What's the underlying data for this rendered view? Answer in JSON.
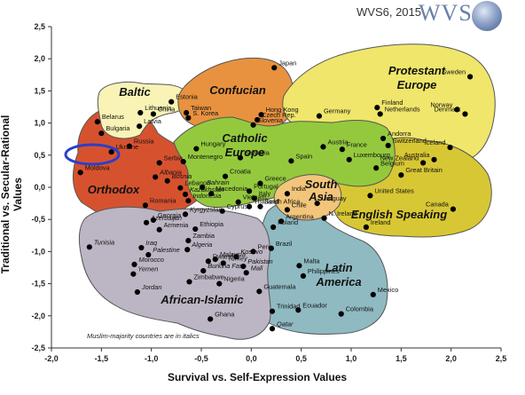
{
  "header": {
    "source": "WVS6, 2015",
    "logo_text": "WVS"
  },
  "note": "Muslim-majority countries are in italics",
  "chart_data": {
    "type": "scatter",
    "xlabel": "Survival vs. Self-Expression Values",
    "ylabel": "Traditional vs. Secular-Rational Values",
    "xlim": [
      -2.0,
      2.5
    ],
    "ylim": [
      -2.5,
      2.5
    ],
    "xticks": [
      "-2,0",
      "-1,5",
      "-1,0",
      "-0,5",
      "0,0",
      "0,5",
      "1,0",
      "1,5",
      "2,0",
      "2,5"
    ],
    "yticks": [
      "2,5",
      "2,0",
      "1,5",
      "1,0",
      "0,5",
      "0,0",
      "-0,5",
      "-1,0",
      "-1,5",
      "-2,0",
      "-2,5"
    ],
    "grid": false,
    "highlight": "Ukraine",
    "regions": [
      {
        "name": "Baltic",
        "color": "#f9f3b5"
      },
      {
        "name": "Confucian",
        "color": "#e8923f"
      },
      {
        "name": "Protestant Europe",
        "color": "#efe66b"
      },
      {
        "name": "Catholic Europe",
        "color": "#94c93e"
      },
      {
        "name": "Orthodox",
        "color": "#d6522f"
      },
      {
        "name": "South Asia",
        "color": "#f2c57a"
      },
      {
        "name": "English Speaking",
        "color": "#d8c734"
      },
      {
        "name": "Latin America",
        "color": "#8fbac2"
      },
      {
        "name": "African-Islamic",
        "color": "#bcb5c3"
      }
    ],
    "points": [
      {
        "name": "Japan",
        "x": 0.23,
        "y": 1.86,
        "italic": false
      },
      {
        "name": "Sweden",
        "x": 2.19,
        "y": 1.72,
        "italic": false
      },
      {
        "name": "Estonia",
        "x": -0.8,
        "y": 1.33,
        "italic": false
      },
      {
        "name": "Lithuania",
        "x": -1.11,
        "y": 1.16,
        "italic": false
      },
      {
        "name": "China",
        "x": -0.98,
        "y": 1.14,
        "italic": false
      },
      {
        "name": "Taiwan",
        "x": -0.65,
        "y": 1.16,
        "italic": false
      },
      {
        "name": "S. Korea",
        "x": -0.63,
        "y": 1.08,
        "italic": false
      },
      {
        "name": "Hong Kong",
        "x": 0.1,
        "y": 1.13,
        "italic": false
      },
      {
        "name": "Czech Rep.",
        "x": 0.06,
        "y": 1.05,
        "italic": false
      },
      {
        "name": "Slovenia",
        "x": 0.02,
        "y": 0.97,
        "italic": false
      },
      {
        "name": "Germany",
        "x": 0.68,
        "y": 1.11,
        "italic": false
      },
      {
        "name": "Finland",
        "x": 1.26,
        "y": 1.24,
        "italic": false
      },
      {
        "name": "Netherlands",
        "x": 1.29,
        "y": 1.14,
        "italic": false
      },
      {
        "name": "Norway",
        "x": 2.06,
        "y": 1.21,
        "italic": false
      },
      {
        "name": "Denmark",
        "x": 2.14,
        "y": 1.14,
        "italic": false
      },
      {
        "name": "Belarus",
        "x": -1.54,
        "y": 1.02,
        "italic": false
      },
      {
        "name": "Bulgaria",
        "x": -1.5,
        "y": 0.84,
        "italic": false
      },
      {
        "name": "Latvia",
        "x": -1.12,
        "y": 0.95,
        "italic": false
      },
      {
        "name": "Russia",
        "x": -1.22,
        "y": 0.64,
        "italic": false
      },
      {
        "name": "Ukraine",
        "x": -1.4,
        "y": 0.55,
        "italic": false
      },
      {
        "name": "Moldova",
        "x": -1.71,
        "y": 0.23,
        "italic": false
      },
      {
        "name": "Serbia",
        "x": -0.92,
        "y": 0.38,
        "italic": false
      },
      {
        "name": "Montenegro",
        "x": -0.68,
        "y": 0.4,
        "italic": false
      },
      {
        "name": "Albania",
        "x": -0.96,
        "y": 0.16,
        "italic": true
      },
      {
        "name": "Bosnia",
        "x": -0.84,
        "y": 0.1,
        "italic": true
      },
      {
        "name": "Hungary",
        "x": -0.55,
        "y": 0.6,
        "italic": false
      },
      {
        "name": "Slovakia",
        "x": -0.11,
        "y": 0.46,
        "italic": false
      },
      {
        "name": "Austria",
        "x": 0.72,
        "y": 0.63,
        "italic": false
      },
      {
        "name": "France",
        "x": 0.91,
        "y": 0.59,
        "italic": false
      },
      {
        "name": "Andorra",
        "x": 1.32,
        "y": 0.76,
        "italic": false
      },
      {
        "name": "Switzerland",
        "x": 1.37,
        "y": 0.65,
        "italic": false
      },
      {
        "name": "Luxembourg",
        "x": 0.98,
        "y": 0.43,
        "italic": false
      },
      {
        "name": "Spain",
        "x": 0.4,
        "y": 0.41,
        "italic": false
      },
      {
        "name": "Belgium",
        "x": 1.25,
        "y": 0.3,
        "italic": false
      },
      {
        "name": "Iceland",
        "x": 1.99,
        "y": 0.62,
        "italic": false
      },
      {
        "name": "Australia",
        "x": 1.83,
        "y": 0.43,
        "italic": false
      },
      {
        "name": "New Zealand",
        "x": 1.72,
        "y": 0.38,
        "italic": false
      },
      {
        "name": "Great Britain",
        "x": 1.5,
        "y": 0.19,
        "italic": false
      },
      {
        "name": "United States",
        "x": 1.19,
        "y": -0.13,
        "italic": false
      },
      {
        "name": "Canada",
        "x": 2.02,
        "y": -0.34,
        "italic": false
      },
      {
        "name": "N. Ireland",
        "x": 0.73,
        "y": -0.48,
        "italic": false
      },
      {
        "name": "Ireland",
        "x": 1.15,
        "y": -0.62,
        "italic": false
      },
      {
        "name": "Croatia",
        "x": -0.26,
        "y": 0.17,
        "italic": false
      },
      {
        "name": "Greece",
        "x": 0.09,
        "y": 0.06,
        "italic": false
      },
      {
        "name": "Portugal",
        "x": -0.02,
        "y": -0.06,
        "italic": false
      },
      {
        "name": "Italy",
        "x": 0.03,
        "y": -0.17,
        "italic": false
      },
      {
        "name": "India",
        "x": 0.36,
        "y": -0.1,
        "italic": false
      },
      {
        "name": "Uruguay",
        "x": 0.66,
        "y": -0.25,
        "italic": false
      },
      {
        "name": "Chile",
        "x": 0.36,
        "y": -0.35,
        "italic": false
      },
      {
        "name": "Argentina",
        "x": 0.3,
        "y": -0.53,
        "italic": false
      },
      {
        "name": "Poland",
        "x": 0.22,
        "y": -0.62,
        "italic": false
      },
      {
        "name": "Brazil",
        "x": 0.2,
        "y": -0.95,
        "italic": false
      },
      {
        "name": "South Africa",
        "x": 0.09,
        "y": -0.3,
        "italic": false
      },
      {
        "name": "Thailand",
        "x": -0.02,
        "y": -0.3,
        "italic": false
      },
      {
        "name": "Vietnam",
        "x": -0.13,
        "y": -0.23,
        "italic": false
      },
      {
        "name": "Lebanon",
        "x": -0.71,
        "y": -0.01,
        "italic": true
      },
      {
        "name": "Bahrain",
        "x": -0.49,
        "y": 0.0,
        "italic": true
      },
      {
        "name": "Kazakhstan",
        "x": -0.66,
        "y": -0.11,
        "italic": true
      },
      {
        "name": "Indonesia",
        "x": -0.63,
        "y": -0.21,
        "italic": true
      },
      {
        "name": "Macedonia",
        "x": -0.4,
        "y": -0.1,
        "italic": false
      },
      {
        "name": "Azerbaijan",
        "x": -1.05,
        "y": -0.55,
        "italic": true
      },
      {
        "name": "Georgia",
        "x": -0.98,
        "y": -0.51,
        "italic": false
      },
      {
        "name": "Armenia",
        "x": -0.92,
        "y": -0.66,
        "italic": false
      },
      {
        "name": "Romania",
        "x": -1.06,
        "y": -0.28,
        "italic": false
      },
      {
        "name": "Kyrgyzstan",
        "x": -0.66,
        "y": -0.42,
        "italic": true
      },
      {
        "name": "Cyprus",
        "x": -0.29,
        "y": -0.37,
        "italic": false
      },
      {
        "name": "Ethiopia",
        "x": -0.56,
        "y": -0.65,
        "italic": false
      },
      {
        "name": "Zambia",
        "x": -0.63,
        "y": -0.83,
        "italic": false
      },
      {
        "name": "Algeria",
        "x": -0.64,
        "y": -0.97,
        "italic": true
      },
      {
        "name": "Tunisia",
        "x": -1.62,
        "y": -0.93,
        "italic": true
      },
      {
        "name": "Iraq",
        "x": -1.1,
        "y": -0.94,
        "italic": true
      },
      {
        "name": "Palestine",
        "x": -1.03,
        "y": -1.05,
        "italic": true
      },
      {
        "name": "Morocco",
        "x": -1.17,
        "y": -1.2,
        "italic": true
      },
      {
        "name": "Yemen",
        "x": -1.18,
        "y": -1.35,
        "italic": true
      },
      {
        "name": "Jordan",
        "x": -1.14,
        "y": -1.63,
        "italic": true
      },
      {
        "name": "Malaysia",
        "x": -0.36,
        "y": -1.12,
        "italic": true
      },
      {
        "name": "Kosovo",
        "x": -0.15,
        "y": -1.08,
        "italic": true
      },
      {
        "name": "Rwanda",
        "x": -0.43,
        "y": -1.15,
        "italic": false
      },
      {
        "name": "Turkey",
        "x": -0.28,
        "y": -1.18,
        "italic": true
      },
      {
        "name": "Burkina Faso",
        "x": -0.48,
        "y": -1.3,
        "italic": true
      },
      {
        "name": "Pakistan",
        "x": -0.08,
        "y": -1.23,
        "italic": true
      },
      {
        "name": "Mali",
        "x": -0.05,
        "y": -1.33,
        "italic": true
      },
      {
        "name": "Zimbabwe",
        "x": -0.62,
        "y": -1.47,
        "italic": false
      },
      {
        "name": "Nigeria",
        "x": -0.32,
        "y": -1.5,
        "italic": false
      },
      {
        "name": "Peru",
        "x": 0.02,
        "y": -1.0,
        "italic": false
      },
      {
        "name": "Malta",
        "x": 0.48,
        "y": -1.22,
        "italic": false
      },
      {
        "name": "Philippines",
        "x": 0.52,
        "y": -1.38,
        "italic": false
      },
      {
        "name": "Guatemala",
        "x": 0.08,
        "y": -1.62,
        "italic": false
      },
      {
        "name": "Mexico",
        "x": 1.22,
        "y": -1.67,
        "italic": false
      },
      {
        "name": "Ecuador",
        "x": 0.47,
        "y": -1.91,
        "italic": false
      },
      {
        "name": "Colombia",
        "x": 0.9,
        "y": -1.97,
        "italic": false
      },
      {
        "name": "Trinidad",
        "x": 0.21,
        "y": -1.93,
        "italic": false
      },
      {
        "name": "Ghana",
        "x": -0.41,
        "y": -2.05,
        "italic": false
      },
      {
        "name": "Qatar",
        "x": 0.21,
        "y": -2.2,
        "italic": true
      }
    ]
  }
}
